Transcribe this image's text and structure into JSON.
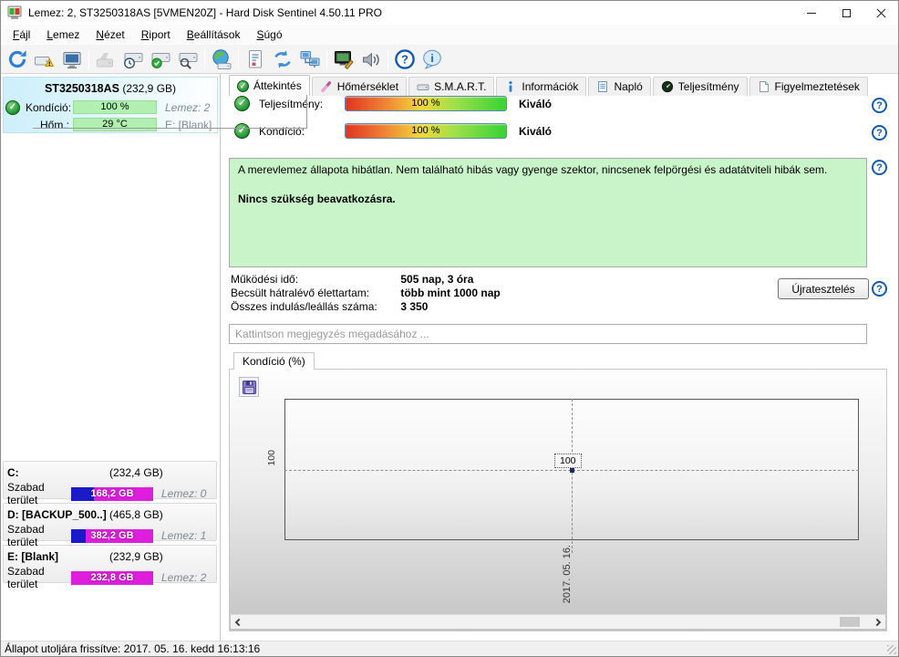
{
  "window": {
    "title": "Lemez: 2, ST3250318AS [5VMEN20Z]  -  Hard Disk Sentinel 4.50.11 PRO"
  },
  "menu": {
    "items": [
      "Fájl",
      "Lemez",
      "Nézet",
      "Riport",
      "Beállítások",
      "Súgó"
    ]
  },
  "toolbar": {
    "icons": [
      "refresh",
      "disk-warning",
      "disk-display",
      "disk-disabled",
      "disk-clock",
      "disk-accept",
      "disk-search",
      "globe-disk",
      "report",
      "sync",
      "network",
      "monitor-edit",
      "sound",
      "help",
      "info"
    ]
  },
  "tabs": {
    "items": [
      {
        "label": "Áttekintés"
      },
      {
        "label": "Hőmérséklet"
      },
      {
        "label": "S.M.A.R.T."
      },
      {
        "label": "Információk"
      },
      {
        "label": "Napló"
      },
      {
        "label": "Teljesítmény"
      },
      {
        "label": "Figyelmeztetések"
      }
    ]
  },
  "sidebar": {
    "disk": {
      "name": "ST3250318AS",
      "size": "(232,9 GB)",
      "condition_label": "Kondíció:",
      "condition_value": "100 %",
      "disk_tag": "Lemez: 2",
      "temp_label": "Hőm.:",
      "temp_value": "29 °C",
      "volume_tag": "E: [Blank]"
    },
    "partitions": [
      {
        "name": "C:",
        "size": "(232,4 GB)",
        "free_label": "Szabad terület",
        "free_value": "168,2 GB",
        "disk_tag": "Lemez: 0",
        "used_pct": 28
      },
      {
        "name": "D: [BACKUP_500..]",
        "size": "(465,8 GB)",
        "free_label": "Szabad terület",
        "free_value": "382,2 GB",
        "disk_tag": "Lemez: 1",
        "used_pct": 18
      },
      {
        "name": "E: [Blank]",
        "size": "(232,9 GB)",
        "free_label": "Szabad terület",
        "free_value": "232,8 GB",
        "disk_tag": "Lemez: 2",
        "used_pct": 0
      }
    ]
  },
  "overview": {
    "rows": [
      {
        "label": "Teljesítmény:",
        "value": "100 %",
        "rating": "Kiváló"
      },
      {
        "label": "Kondíció:",
        "value": "100 %",
        "rating": "Kiváló"
      }
    ],
    "status_text": "A merevlemez állapota hibátlan. Nem található hibás vagy gyenge szektor, nincsenek felpörgési és adatátviteli hibák sem.",
    "status_advice": "Nincs szükség beavatkozásra.",
    "info_rows": [
      {
        "label": "Működési idő:",
        "value": "505 nap, 3 óra"
      },
      {
        "label": "Becsült hátralévő élettartam:",
        "value": "több mint 1000 nap"
      },
      {
        "label": "Összes indulás/leállás száma:",
        "value": "3 350"
      }
    ],
    "retest_button": "Újratesztelés",
    "comment_placeholder": "Kattintson megjegyzés megadásához ..."
  },
  "chart_data": {
    "type": "line",
    "title": "Kondíció  (%)",
    "x": [
      "2017. 05. 16."
    ],
    "series": [
      {
        "name": "Kondíció",
        "values": [
          100
        ]
      }
    ],
    "yticks": [
      "100"
    ],
    "point_label": "100",
    "grid": "dashed-crosshair",
    "legend": "none"
  },
  "status_bar": {
    "text": "Állapot utoljára frissítve: 2017. 05. 16. kedd 16:13:16"
  }
}
